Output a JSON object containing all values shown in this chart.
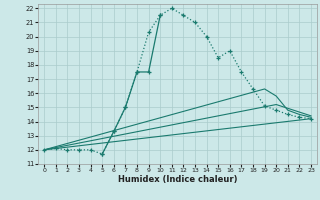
{
  "xlabel": "Humidex (Indice chaleur)",
  "xlim": [
    -0.5,
    23.5
  ],
  "ylim": [
    11,
    22.3
  ],
  "xticks": [
    0,
    1,
    2,
    3,
    4,
    5,
    6,
    7,
    8,
    9,
    10,
    11,
    12,
    13,
    14,
    15,
    16,
    17,
    18,
    19,
    20,
    21,
    22,
    23
  ],
  "yticks": [
    11,
    12,
    13,
    14,
    15,
    16,
    17,
    18,
    19,
    20,
    21,
    22
  ],
  "bg_color": "#cce8e8",
  "grid_color": "#aacccc",
  "line_color": "#1a7a6e",
  "dotted_line": {
    "x": [
      0,
      1,
      2,
      3,
      4,
      5,
      6,
      7,
      8,
      9,
      10,
      11,
      12,
      13,
      14,
      15,
      16,
      17,
      18,
      19,
      20,
      21,
      22,
      23
    ],
    "y": [
      12,
      12.1,
      12,
      12,
      12,
      11.7,
      13.3,
      15,
      17.5,
      20.3,
      21.5,
      22,
      21.5,
      21,
      20,
      18.5,
      19,
      17.5,
      16.3,
      15.1,
      14.8,
      14.5,
      14.3,
      14.2
    ]
  },
  "spike_line": {
    "x": [
      5,
      6,
      7,
      8,
      9,
      10
    ],
    "y": [
      11.7,
      13.3,
      15,
      17.5,
      17.5,
      21.5
    ]
  },
  "straight_lines": [
    {
      "x": [
        0,
        23
      ],
      "y": [
        12,
        14.2
      ]
    },
    {
      "x": [
        0,
        20,
        23
      ],
      "y": [
        12,
        15.2,
        14.4
      ]
    },
    {
      "x": [
        0,
        19,
        20,
        21,
        22,
        23
      ],
      "y": [
        12,
        16.3,
        15.8,
        14.8,
        14.5,
        14.3
      ]
    }
  ]
}
